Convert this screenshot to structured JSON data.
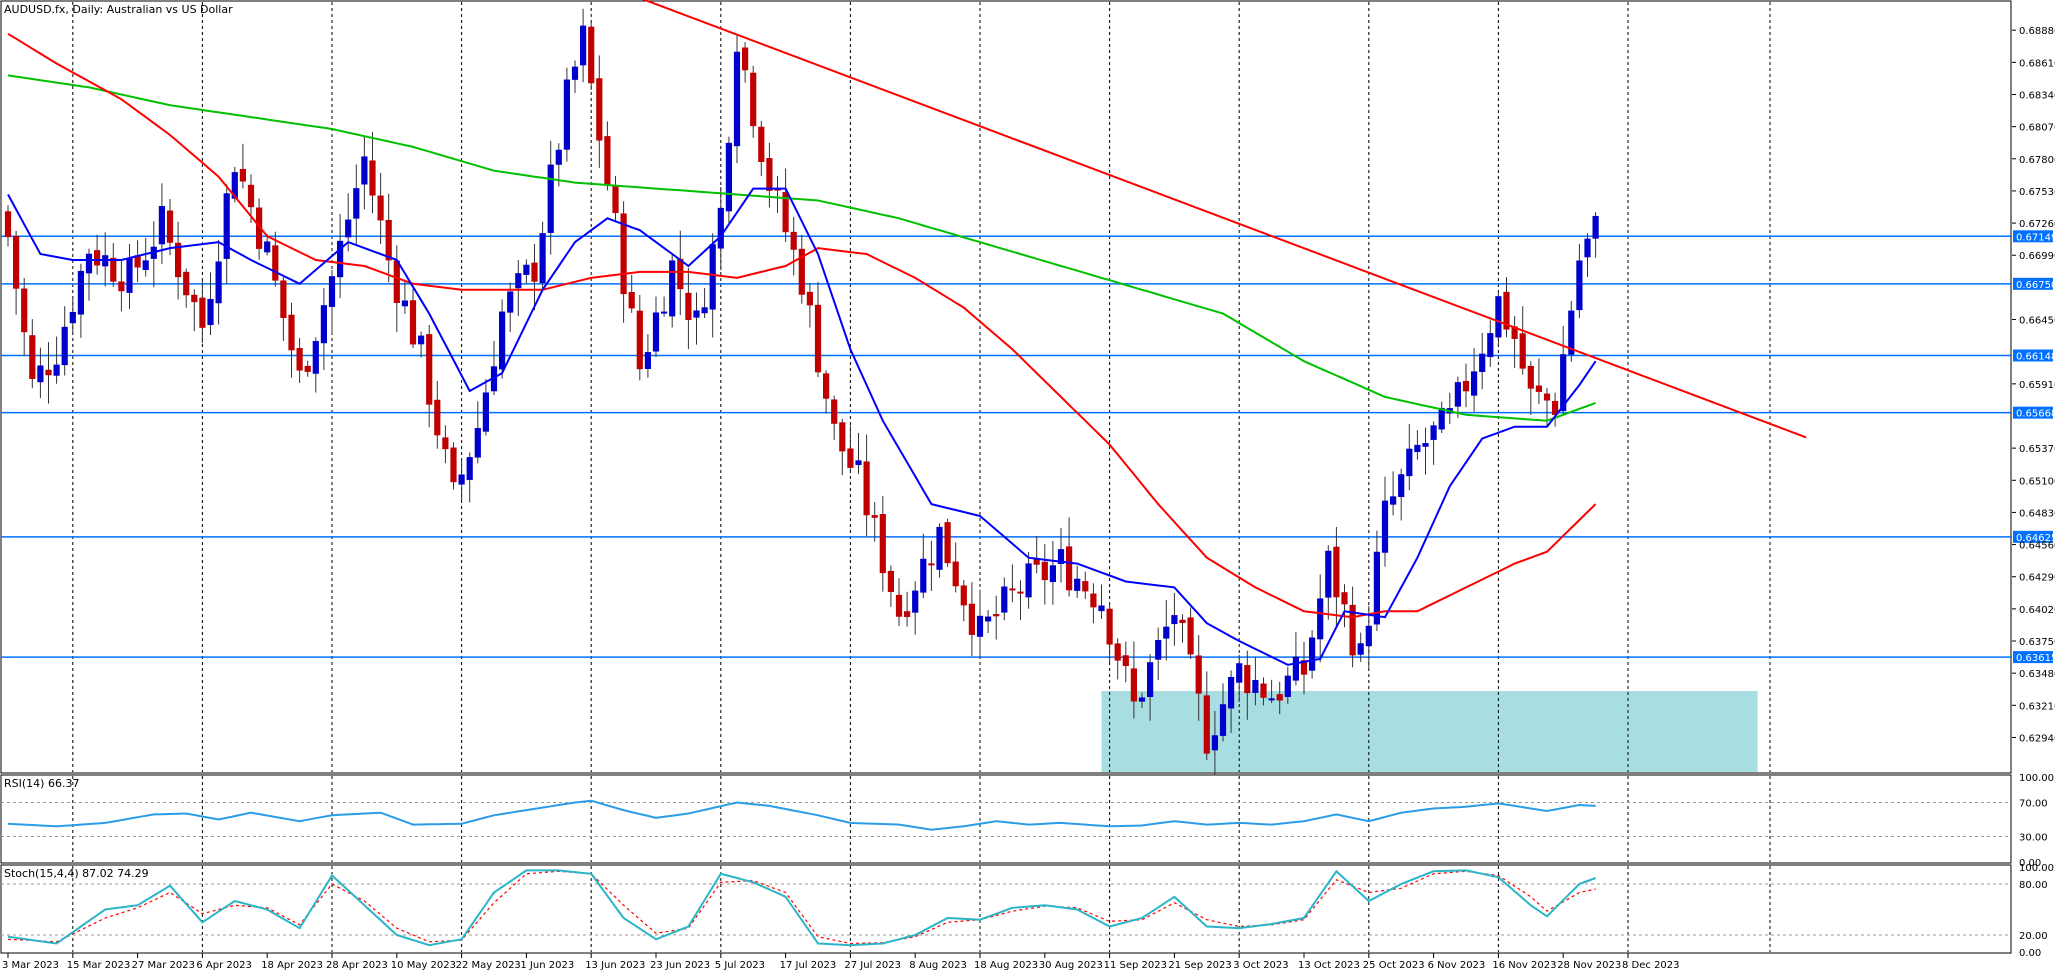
{
  "header": {
    "symbol_title": "AUDUSD.fx, Daily:  Australian vs US Dollar"
  },
  "indicators": {
    "rsi_label": "RSI(14) 66.37",
    "stoch_label": "Stoch(15,4,4) 87.02 74.29"
  },
  "colors": {
    "bull": "#0000cc",
    "bear": "#c00000",
    "ma_fast": "#0000ff",
    "ma_mid": "#ff0000",
    "ma_slow": "#00c000",
    "level": "#0070ff",
    "trendline": "#ff0000",
    "zone": "#a8dde2",
    "rsi": "#2b9de8",
    "stoch_main": "#2ab6c8",
    "stoch_signal": "#ff0000"
  },
  "chart_data": [
    {
      "type": "candlestick",
      "title": "AUDUSD.fx, Daily:  Australian vs US Dollar",
      "x_tick_labels": [
        "3 Mar 2023",
        "15 Mar 2023",
        "27 Mar 2023",
        "6 Apr 2023",
        "18 Apr 2023",
        "28 Apr 2023",
        "10 May 2023",
        "22 May 2023",
        "1 Jun 2023",
        "13 Jun 2023",
        "23 Jun 2023",
        "5 Jul 2023",
        "17 Jul 2023",
        "27 Jul 2023",
        "8 Aug 2023",
        "18 Aug 2023",
        "30 Aug 2023",
        "11 Sep 2023",
        "21 Sep 2023",
        "3 Oct 2023",
        "13 Oct 2023",
        "25 Oct 2023",
        "6 Nov 2023",
        "16 Nov 2023",
        "28 Nov 2023",
        "8 Dec 2023"
      ],
      "y_tick_labels": [
        "0.68880",
        "0.68610",
        "0.68340",
        "0.68070",
        "0.67800",
        "0.67530",
        "0.67260",
        "0.66990",
        "0.66450",
        "0.65910",
        "0.65370",
        "0.65100",
        "0.64830",
        "0.64560",
        "0.64290",
        "0.64020",
        "0.63750",
        "0.63480",
        "0.63210",
        "0.62940"
      ],
      "ylim": [
        0.6265,
        0.691
      ],
      "price_levels": [
        0.67149,
        0.6675,
        0.66148,
        0.65668,
        0.64625,
        0.63615
      ],
      "level_tags": [
        "0.67149",
        "0.66750",
        "0.66148",
        "0.65668",
        "0.64625",
        "0.63615"
      ],
      "support_zone": {
        "price_top": 0.6333,
        "price_bottom": 0.6265,
        "from_bar": 135,
        "to_bar": 216
      },
      "trendline": {
        "from_bar": 78,
        "from_price": 0.6915,
        "to_bar": 222,
        "to_price": 0.6546
      },
      "ohlc_anchor_closes": [
        [
          0,
          0.6715
        ],
        [
          3,
          0.659
        ],
        [
          6,
          0.662
        ],
        [
          10,
          0.6705
        ],
        [
          15,
          0.668
        ],
        [
          19,
          0.6725
        ],
        [
          24,
          0.664
        ],
        [
          28,
          0.678
        ],
        [
          32,
          0.67
        ],
        [
          36,
          0.6595
        ],
        [
          40,
          0.668
        ],
        [
          44,
          0.678
        ],
        [
          47,
          0.6695
        ],
        [
          51,
          0.6615
        ],
        [
          55,
          0.6495
        ],
        [
          58,
          0.6555
        ],
        [
          61,
          0.665
        ],
        [
          65,
          0.669
        ],
        [
          69,
          0.683
        ],
        [
          71,
          0.688
        ],
        [
          74,
          0.676
        ],
        [
          78,
          0.6605
        ],
        [
          82,
          0.669
        ],
        [
          85,
          0.664
        ],
        [
          88,
          0.6735
        ],
        [
          90,
          0.6885
        ],
        [
          94,
          0.676
        ],
        [
          98,
          0.668
        ],
        [
          102,
          0.655
        ],
        [
          105,
          0.651
        ],
        [
          110,
          0.64
        ],
        [
          115,
          0.6465
        ],
        [
          120,
          0.638
        ],
        [
          125,
          0.642
        ],
        [
          130,
          0.644
        ],
        [
          135,
          0.641
        ],
        [
          139,
          0.632
        ],
        [
          144,
          0.64
        ],
        [
          148,
          0.6295
        ],
        [
          152,
          0.635
        ],
        [
          156,
          0.633
        ],
        [
          160,
          0.635
        ],
        [
          163,
          0.644
        ],
        [
          167,
          0.636
        ],
        [
          170,
          0.648
        ],
        [
          174,
          0.6535
        ],
        [
          178,
          0.656
        ],
        [
          182,
          0.6625
        ],
        [
          184,
          0.666
        ],
        [
          186,
          0.663
        ],
        [
          188,
          0.658
        ],
        [
          191,
          0.6575
        ],
        [
          194,
          0.6695
        ],
        [
          196,
          0.672
        ]
      ],
      "ma_fast_anchors": [
        [
          0,
          0.675
        ],
        [
          4,
          0.67
        ],
        [
          8,
          0.6695
        ],
        [
          14,
          0.6695
        ],
        [
          20,
          0.6705
        ],
        [
          26,
          0.671
        ],
        [
          30,
          0.6695
        ],
        [
          36,
          0.6675
        ],
        [
          42,
          0.671
        ],
        [
          48,
          0.6695
        ],
        [
          52,
          0.665
        ],
        [
          57,
          0.6585
        ],
        [
          61,
          0.66
        ],
        [
          66,
          0.667
        ],
        [
          70,
          0.671
        ],
        [
          74,
          0.673
        ],
        [
          78,
          0.672
        ],
        [
          84,
          0.669
        ],
        [
          88,
          0.6715
        ],
        [
          92,
          0.6755
        ],
        [
          96,
          0.6755
        ],
        [
          100,
          0.67
        ],
        [
          104,
          0.662
        ],
        [
          108,
          0.656
        ],
        [
          114,
          0.649
        ],
        [
          120,
          0.648
        ],
        [
          126,
          0.6445
        ],
        [
          132,
          0.644
        ],
        [
          138,
          0.6425
        ],
        [
          144,
          0.642
        ],
        [
          148,
          0.639
        ],
        [
          152,
          0.6375
        ],
        [
          158,
          0.6355
        ],
        [
          162,
          0.636
        ],
        [
          165,
          0.64
        ],
        [
          170,
          0.6395
        ],
        [
          174,
          0.6445
        ],
        [
          178,
          0.6505
        ],
        [
          182,
          0.6545
        ],
        [
          186,
          0.6555
        ],
        [
          190,
          0.6555
        ],
        [
          194,
          0.659
        ],
        [
          196,
          0.661
        ]
      ],
      "ma_mid_anchors": [
        [
          0,
          0.6885
        ],
        [
          6,
          0.686
        ],
        [
          14,
          0.683
        ],
        [
          20,
          0.68
        ],
        [
          26,
          0.6765
        ],
        [
          32,
          0.6715
        ],
        [
          38,
          0.6695
        ],
        [
          44,
          0.669
        ],
        [
          50,
          0.6675
        ],
        [
          56,
          0.667
        ],
        [
          62,
          0.667
        ],
        [
          66,
          0.667
        ],
        [
          72,
          0.668
        ],
        [
          78,
          0.6685
        ],
        [
          84,
          0.6685
        ],
        [
          90,
          0.668
        ],
        [
          96,
          0.669
        ],
        [
          100,
          0.6705
        ],
        [
          106,
          0.67
        ],
        [
          112,
          0.668
        ],
        [
          118,
          0.6655
        ],
        [
          124,
          0.662
        ],
        [
          130,
          0.658
        ],
        [
          136,
          0.654
        ],
        [
          142,
          0.649
        ],
        [
          148,
          0.6445
        ],
        [
          154,
          0.642
        ],
        [
          160,
          0.64
        ],
        [
          166,
          0.6395
        ],
        [
          170,
          0.64
        ],
        [
          174,
          0.64
        ],
        [
          180,
          0.642
        ],
        [
          186,
          0.644
        ],
        [
          190,
          0.645
        ],
        [
          196,
          0.649
        ]
      ],
      "ma_slow_anchors": [
        [
          0,
          0.685
        ],
        [
          10,
          0.684
        ],
        [
          20,
          0.6825
        ],
        [
          30,
          0.6815
        ],
        [
          40,
          0.6805
        ],
        [
          50,
          0.679
        ],
        [
          60,
          0.677
        ],
        [
          70,
          0.676
        ],
        [
          80,
          0.6755
        ],
        [
          90,
          0.675
        ],
        [
          100,
          0.6745
        ],
        [
          110,
          0.673
        ],
        [
          120,
          0.671
        ],
        [
          130,
          0.669
        ],
        [
          140,
          0.667
        ],
        [
          150,
          0.665
        ],
        [
          160,
          0.661
        ],
        [
          170,
          0.658
        ],
        [
          180,
          0.6565
        ],
        [
          190,
          0.656
        ],
        [
          196,
          0.6575
        ]
      ]
    },
    {
      "type": "line",
      "title": "RSI(14) 66.37",
      "y_tick_labels": [
        "100.00",
        "70.00",
        "30.00",
        "0.00"
      ],
      "ylim": [
        0,
        100
      ],
      "levels": [
        70,
        30
      ],
      "rsi_anchors": [
        [
          0,
          45
        ],
        [
          6,
          42
        ],
        [
          12,
          46
        ],
        [
          18,
          56
        ],
        [
          22,
          57
        ],
        [
          26,
          50
        ],
        [
          30,
          58
        ],
        [
          36,
          48
        ],
        [
          40,
          55
        ],
        [
          46,
          58
        ],
        [
          50,
          44
        ],
        [
          56,
          45
        ],
        [
          60,
          55
        ],
        [
          66,
          64
        ],
        [
          70,
          70
        ],
        [
          72,
          72
        ],
        [
          76,
          61
        ],
        [
          80,
          52
        ],
        [
          84,
          57
        ],
        [
          90,
          70
        ],
        [
          94,
          66
        ],
        [
          100,
          55
        ],
        [
          104,
          46
        ],
        [
          110,
          44
        ],
        [
          114,
          38
        ],
        [
          118,
          42
        ],
        [
          122,
          48
        ],
        [
          126,
          44
        ],
        [
          130,
          46
        ],
        [
          136,
          42
        ],
        [
          140,
          43
        ],
        [
          144,
          48
        ],
        [
          148,
          44
        ],
        [
          152,
          46
        ],
        [
          156,
          44
        ],
        [
          160,
          48
        ],
        [
          164,
          56
        ],
        [
          168,
          48
        ],
        [
          172,
          58
        ],
        [
          176,
          63
        ],
        [
          180,
          65
        ],
        [
          184,
          69
        ],
        [
          186,
          66
        ],
        [
          190,
          60
        ],
        [
          194,
          67
        ],
        [
          196,
          66
        ]
      ]
    },
    {
      "type": "line",
      "title": "Stoch(15,4,4) 87.02 74.29",
      "y_tick_labels": [
        "100.00",
        "80.00",
        "20.00",
        "0.00"
      ],
      "ylim": [
        0,
        100
      ],
      "levels": [
        80,
        20
      ],
      "stoch_main_anchors": [
        [
          0,
          18
        ],
        [
          6,
          10
        ],
        [
          12,
          50
        ],
        [
          16,
          55
        ],
        [
          20,
          78
        ],
        [
          24,
          35
        ],
        [
          28,
          60
        ],
        [
          32,
          50
        ],
        [
          36,
          28
        ],
        [
          40,
          90
        ],
        [
          44,
          55
        ],
        [
          48,
          20
        ],
        [
          52,
          8
        ],
        [
          56,
          15
        ],
        [
          60,
          70
        ],
        [
          64,
          96
        ],
        [
          68,
          96
        ],
        [
          72,
          92
        ],
        [
          76,
          40
        ],
        [
          80,
          15
        ],
        [
          84,
          30
        ],
        [
          88,
          92
        ],
        [
          92,
          82
        ],
        [
          96,
          65
        ],
        [
          100,
          10
        ],
        [
          104,
          8
        ],
        [
          108,
          10
        ],
        [
          112,
          20
        ],
        [
          116,
          40
        ],
        [
          120,
          38
        ],
        [
          124,
          52
        ],
        [
          128,
          55
        ],
        [
          132,
          50
        ],
        [
          136,
          30
        ],
        [
          140,
          40
        ],
        [
          144,
          65
        ],
        [
          148,
          30
        ],
        [
          152,
          28
        ],
        [
          156,
          33
        ],
        [
          160,
          40
        ],
        [
          164,
          95
        ],
        [
          168,
          60
        ],
        [
          172,
          80
        ],
        [
          176,
          95
        ],
        [
          180,
          96
        ],
        [
          184,
          88
        ],
        [
          188,
          55
        ],
        [
          190,
          42
        ],
        [
          194,
          80
        ],
        [
          196,
          87
        ]
      ],
      "stoch_signal_anchors": [
        [
          0,
          15
        ],
        [
          6,
          12
        ],
        [
          12,
          40
        ],
        [
          16,
          52
        ],
        [
          20,
          70
        ],
        [
          24,
          45
        ],
        [
          28,
          55
        ],
        [
          32,
          52
        ],
        [
          36,
          32
        ],
        [
          40,
          80
        ],
        [
          44,
          60
        ],
        [
          48,
          28
        ],
        [
          52,
          12
        ],
        [
          56,
          14
        ],
        [
          60,
          58
        ],
        [
          64,
          92
        ],
        [
          68,
          95
        ],
        [
          72,
          92
        ],
        [
          76,
          55
        ],
        [
          80,
          22
        ],
        [
          84,
          28
        ],
        [
          88,
          82
        ],
        [
          92,
          84
        ],
        [
          96,
          70
        ],
        [
          100,
          18
        ],
        [
          104,
          10
        ],
        [
          108,
          11
        ],
        [
          112,
          18
        ],
        [
          116,
          35
        ],
        [
          120,
          38
        ],
        [
          124,
          48
        ],
        [
          128,
          54
        ],
        [
          132,
          52
        ],
        [
          136,
          36
        ],
        [
          140,
          38
        ],
        [
          144,
          58
        ],
        [
          148,
          38
        ],
        [
          152,
          30
        ],
        [
          156,
          32
        ],
        [
          160,
          38
        ],
        [
          164,
          85
        ],
        [
          168,
          70
        ],
        [
          172,
          75
        ],
        [
          176,
          92
        ],
        [
          180,
          95
        ],
        [
          184,
          90
        ],
        [
          188,
          65
        ],
        [
          190,
          48
        ],
        [
          194,
          70
        ],
        [
          196,
          74
        ]
      ]
    }
  ]
}
